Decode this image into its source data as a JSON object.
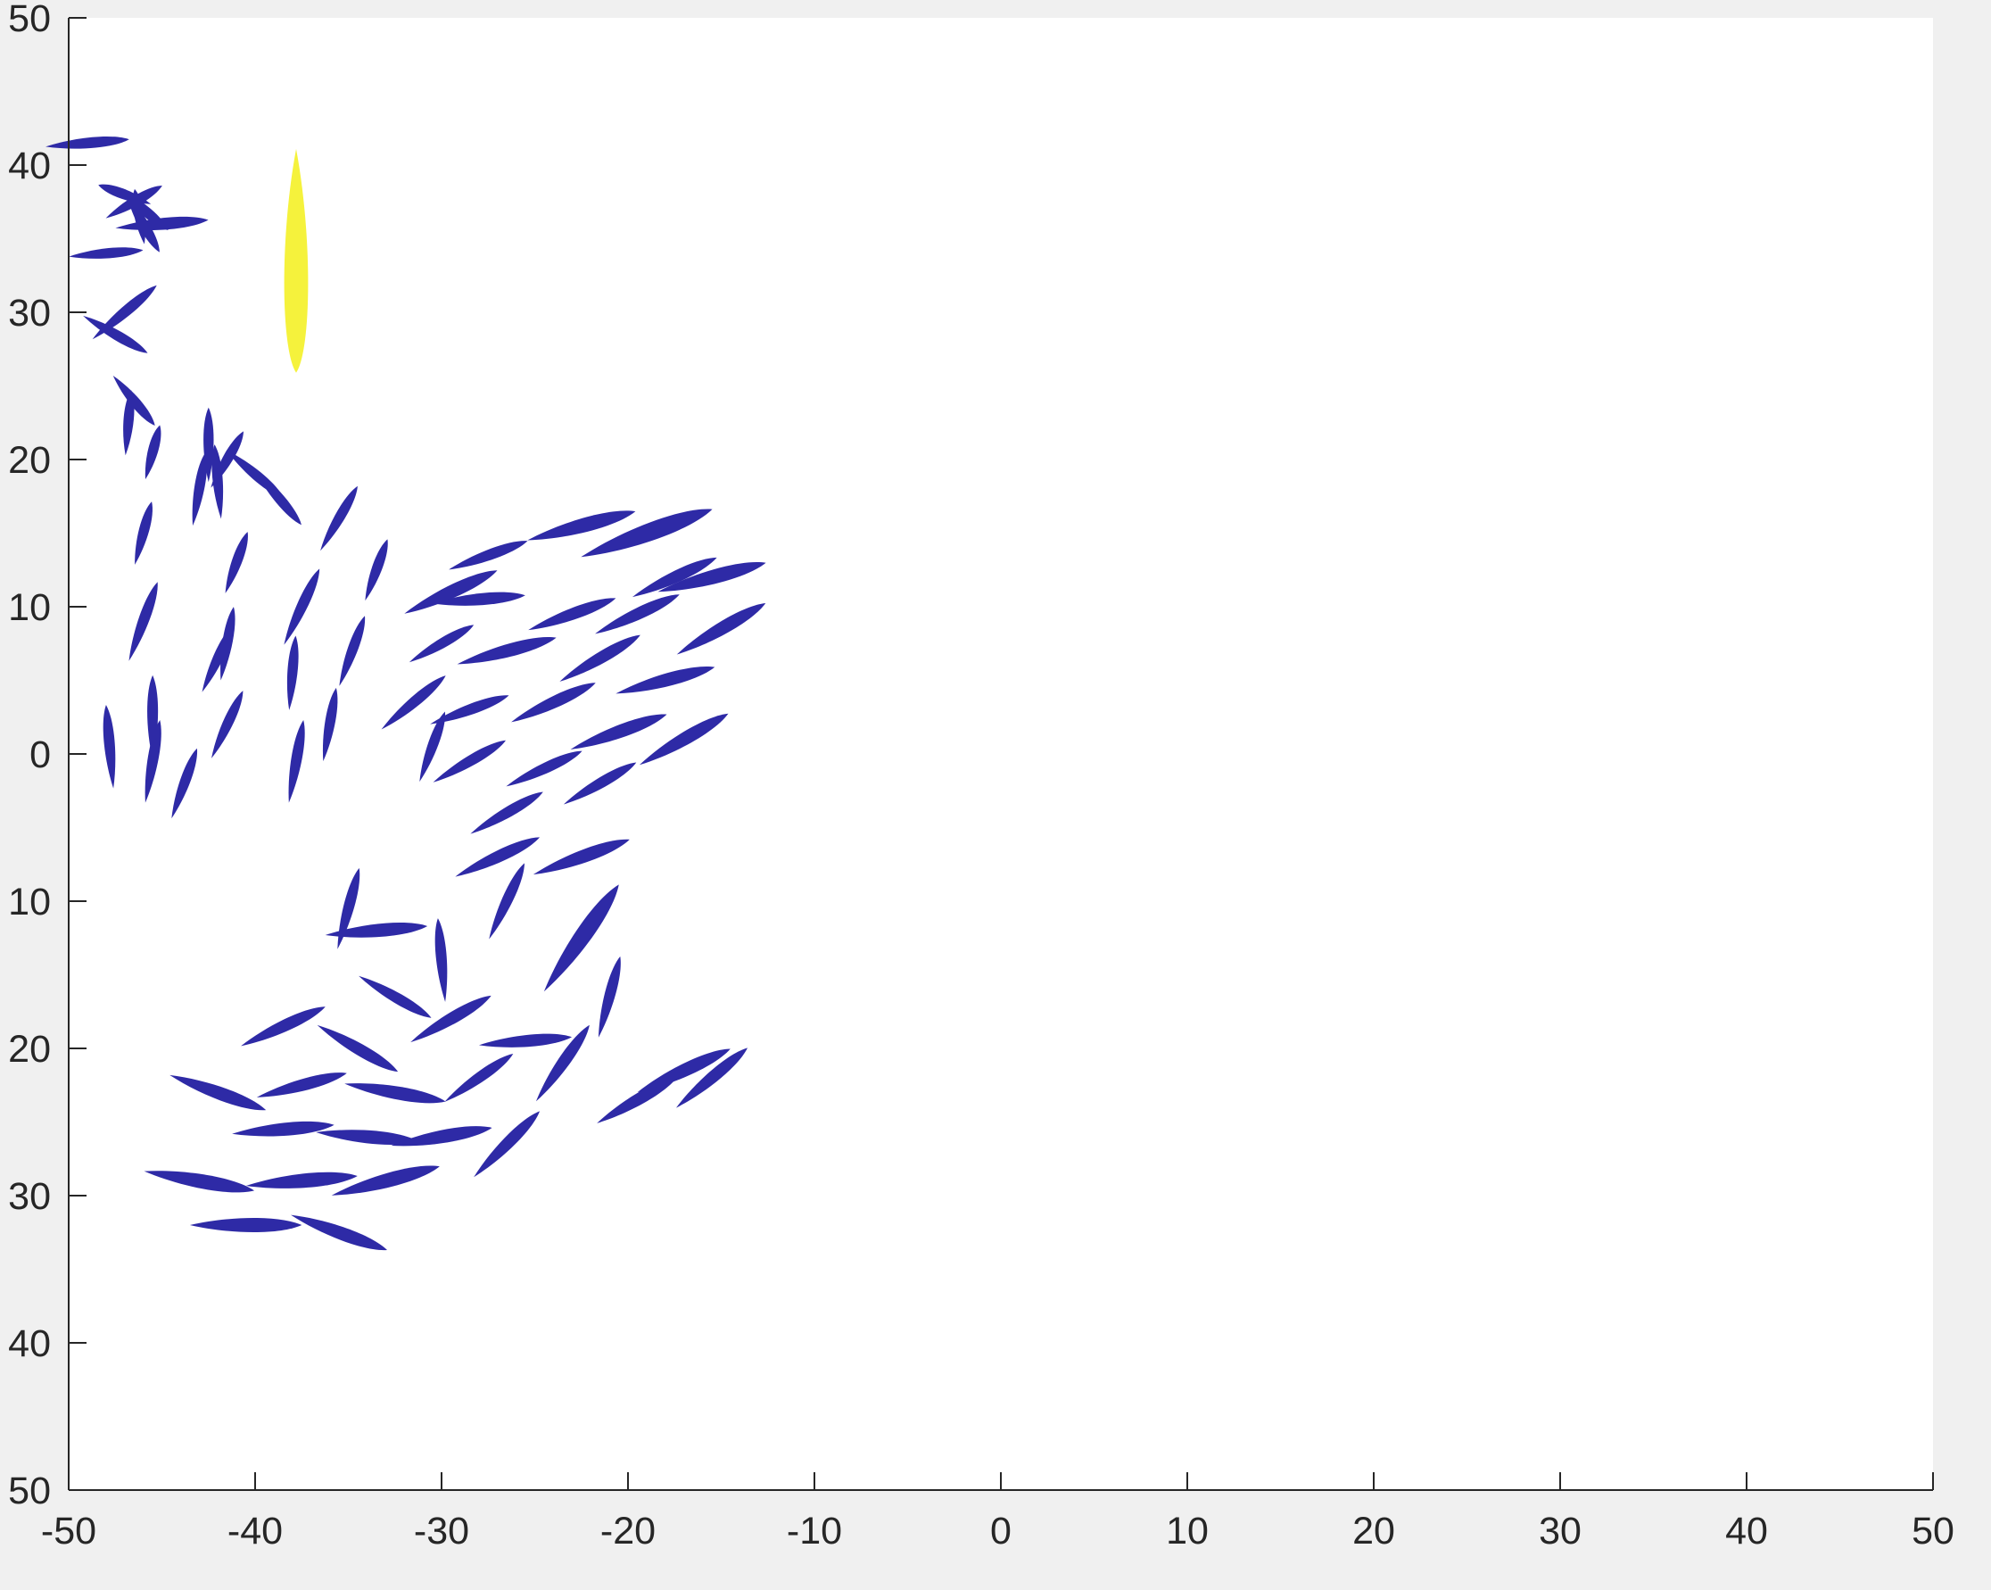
{
  "chart_data": {
    "type": "scatter",
    "title": "",
    "xlabel": "",
    "ylabel": "",
    "xlim": [
      -50,
      50
    ],
    "ylim": [
      -50,
      50
    ],
    "x_ticks": [
      -50,
      -40,
      -30,
      -20,
      -10,
      0,
      10,
      20,
      30,
      40,
      50
    ],
    "y_ticks": [
      -50,
      -40,
      -30,
      -20,
      -10,
      0,
      10,
      20,
      30,
      40,
      50
    ],
    "x_tick_labels": [
      "-50",
      "-40",
      "-30",
      "-20",
      "-10",
      "0",
      "10",
      "20",
      "30",
      "40",
      "50"
    ],
    "y_tick_labels": [
      "50",
      "40",
      "30",
      "20",
      "10",
      "0",
      "10",
      "20",
      "30",
      "40",
      "50"
    ],
    "grid": false,
    "legend": "none",
    "colors": {
      "figure_bg": "#f0f0f0",
      "axes_bg": "#ffffff",
      "axis": "#262626",
      "prey": "#2e2aa6",
      "predator": "#f5f23c"
    },
    "series": [
      {
        "marker": "fish",
        "points": [
          {
            "x": -49.0,
            "y": 41.5,
            "angle": 5,
            "len": 4.5
          },
          {
            "x": -46.5,
            "y": 37.5,
            "angle": 30,
            "len": 3.5
          },
          {
            "x": -46.0,
            "y": 37.0,
            "angle": -40,
            "len": 3.5
          },
          {
            "x": -46.2,
            "y": 36.5,
            "angle": 100,
            "len": 3.0
          },
          {
            "x": -45.0,
            "y": 36.0,
            "angle": 5,
            "len": 5.0
          },
          {
            "x": -47.0,
            "y": 38.0,
            "angle": 160,
            "len": 3.0
          },
          {
            "x": -46.0,
            "y": 36.0,
            "angle": -60,
            "len": 3.5
          },
          {
            "x": -48.0,
            "y": 34.0,
            "angle": 5,
            "len": 4.0
          },
          {
            "x": -47.0,
            "y": 30.0,
            "angle": 40,
            "len": 4.5
          },
          {
            "x": -47.5,
            "y": 28.5,
            "angle": -30,
            "len": 4.0
          },
          {
            "x": -46.5,
            "y": 24.0,
            "angle": -50,
            "len": 3.5
          },
          {
            "x": -46.8,
            "y": 22.5,
            "angle": 85,
            "len": 3.5
          },
          {
            "x": -45.5,
            "y": 20.5,
            "angle": 75,
            "len": 3.0
          },
          {
            "x": -42.5,
            "y": 21.0,
            "angle": 90,
            "len": 4.0
          },
          {
            "x": -42.0,
            "y": 18.5,
            "angle": 95,
            "len": 4.0
          },
          {
            "x": -41.5,
            "y": 20.0,
            "angle": 60,
            "len": 3.5
          },
          {
            "x": -40.0,
            "y": 19.0,
            "angle": -40,
            "len": 4.0
          },
          {
            "x": -38.8,
            "y": 17.5,
            "angle": -50,
            "len": 4.0
          },
          {
            "x": -43.0,
            "y": 18.0,
            "angle": 80,
            "len": 4.0
          },
          {
            "x": -46.0,
            "y": 15.0,
            "angle": 75,
            "len": 3.5
          },
          {
            "x": -41.0,
            "y": 13.0,
            "angle": 70,
            "len": 3.5
          },
          {
            "x": -35.5,
            "y": 16.0,
            "angle": 60,
            "len": 4.0
          },
          {
            "x": -33.5,
            "y": 12.5,
            "angle": 70,
            "len": 3.5
          },
          {
            "x": -46.0,
            "y": 9.0,
            "angle": 70,
            "len": 4.5
          },
          {
            "x": -42.0,
            "y": 6.5,
            "angle": 65,
            "len": 4.0
          },
          {
            "x": -41.5,
            "y": 7.5,
            "angle": 80,
            "len": 4.0
          },
          {
            "x": -37.5,
            "y": 10.0,
            "angle": 65,
            "len": 4.5
          },
          {
            "x": -38.0,
            "y": 5.5,
            "angle": 85,
            "len": 4.0
          },
          {
            "x": -34.8,
            "y": 7.0,
            "angle": 70,
            "len": 4.0
          },
          {
            "x": -45.5,
            "y": 2.5,
            "angle": 90,
            "len": 4.5
          },
          {
            "x": -41.5,
            "y": 2.0,
            "angle": 65,
            "len": 4.0
          },
          {
            "x": -36.0,
            "y": 2.0,
            "angle": 80,
            "len": 4.0
          },
          {
            "x": -37.8,
            "y": -0.5,
            "angle": 80,
            "len": 4.5
          },
          {
            "x": -47.8,
            "y": 0.5,
            "angle": 95,
            "len": 4.5
          },
          {
            "x": -45.5,
            "y": -0.5,
            "angle": 80,
            "len": 4.5
          },
          {
            "x": -43.8,
            "y": -2.0,
            "angle": 70,
            "len": 4.0
          },
          {
            "x": -22.5,
            "y": 15.5,
            "angle": 15,
            "len": 6.0
          },
          {
            "x": -19.0,
            "y": 15.0,
            "angle": 20,
            "len": 7.5
          },
          {
            "x": -27.5,
            "y": 13.5,
            "angle": 20,
            "len": 4.5
          },
          {
            "x": -29.5,
            "y": 11.0,
            "angle": 25,
            "len": 5.5
          },
          {
            "x": -28.0,
            "y": 10.5,
            "angle": 5,
            "len": 5.0
          },
          {
            "x": -17.5,
            "y": 12.0,
            "angle": 25,
            "len": 5.0
          },
          {
            "x": -15.5,
            "y": 12.0,
            "angle": 15,
            "len": 6.0
          },
          {
            "x": -23.0,
            "y": 9.5,
            "angle": 20,
            "len": 5.0
          },
          {
            "x": -30.0,
            "y": 7.5,
            "angle": 30,
            "len": 4.0
          },
          {
            "x": -19.5,
            "y": 9.5,
            "angle": 25,
            "len": 5.0
          },
          {
            "x": -15.0,
            "y": 8.5,
            "angle": 30,
            "len": 5.5
          },
          {
            "x": -26.5,
            "y": 7.0,
            "angle": 15,
            "len": 5.5
          },
          {
            "x": -21.5,
            "y": 6.5,
            "angle": 30,
            "len": 5.0
          },
          {
            "x": -18.0,
            "y": 5.0,
            "angle": 15,
            "len": 5.5
          },
          {
            "x": -31.5,
            "y": 3.5,
            "angle": 40,
            "len": 4.5
          },
          {
            "x": -28.5,
            "y": 3.0,
            "angle": 20,
            "len": 4.5
          },
          {
            "x": -24.0,
            "y": 3.5,
            "angle": 25,
            "len": 5.0
          },
          {
            "x": -20.5,
            "y": 1.5,
            "angle": 20,
            "len": 5.5
          },
          {
            "x": -30.5,
            "y": 0.5,
            "angle": 70,
            "len": 4.0
          },
          {
            "x": -28.5,
            "y": -0.5,
            "angle": 30,
            "len": 4.5
          },
          {
            "x": -24.5,
            "y": -1.0,
            "angle": 25,
            "len": 4.5
          },
          {
            "x": -17.0,
            "y": 1.0,
            "angle": 30,
            "len": 5.5
          },
          {
            "x": -21.5,
            "y": -2.0,
            "angle": 30,
            "len": 4.5
          },
          {
            "x": -26.5,
            "y": -4.0,
            "angle": 30,
            "len": 4.5
          },
          {
            "x": -27.0,
            "y": -7.0,
            "angle": 25,
            "len": 5.0
          },
          {
            "x": -22.5,
            "y": -7.0,
            "angle": 20,
            "len": 5.5
          },
          {
            "x": -26.5,
            "y": -10.0,
            "angle": 65,
            "len": 4.5
          },
          {
            "x": -35.0,
            "y": -10.5,
            "angle": 75,
            "len": 4.5
          },
          {
            "x": -33.5,
            "y": -12.0,
            "angle": 5,
            "len": 5.5
          },
          {
            "x": -30.0,
            "y": -14.0,
            "angle": 95,
            "len": 4.5
          },
          {
            "x": -22.5,
            "y": -12.5,
            "angle": 55,
            "len": 7.0
          },
          {
            "x": -21.0,
            "y": -16.5,
            "angle": 75,
            "len": 4.5
          },
          {
            "x": -32.5,
            "y": -16.5,
            "angle": -30,
            "len": 4.5
          },
          {
            "x": -29.5,
            "y": -18.0,
            "angle": 30,
            "len": 5.0
          },
          {
            "x": -38.5,
            "y": -18.5,
            "angle": 25,
            "len": 5.0
          },
          {
            "x": -34.5,
            "y": -20.0,
            "angle": -30,
            "len": 5.0
          },
          {
            "x": -25.5,
            "y": -19.5,
            "angle": 5,
            "len": 5.0
          },
          {
            "x": -23.5,
            "y": -21.0,
            "angle": 55,
            "len": 5.0
          },
          {
            "x": -37.5,
            "y": -22.5,
            "angle": 15,
            "len": 5.0
          },
          {
            "x": -32.5,
            "y": -23.0,
            "angle": -10,
            "len": 5.5
          },
          {
            "x": -42.0,
            "y": -23.0,
            "angle": -20,
            "len": 5.5
          },
          {
            "x": -28.0,
            "y": -22.0,
            "angle": 35,
            "len": 4.5
          },
          {
            "x": -19.5,
            "y": -23.5,
            "angle": 30,
            "len": 5.0
          },
          {
            "x": -17.0,
            "y": -21.5,
            "angle": 25,
            "len": 5.5
          },
          {
            "x": -15.5,
            "y": -22.0,
            "angle": 40,
            "len": 5.0
          },
          {
            "x": -38.5,
            "y": -25.5,
            "angle": 5,
            "len": 5.5
          },
          {
            "x": -34.0,
            "y": -26.0,
            "angle": -5,
            "len": 5.5
          },
          {
            "x": -30.0,
            "y": -26.0,
            "angle": 10,
            "len": 5.5
          },
          {
            "x": -26.5,
            "y": -26.5,
            "angle": 45,
            "len": 5.0
          },
          {
            "x": -43.0,
            "y": -29.0,
            "angle": -10,
            "len": 6.0
          },
          {
            "x": -37.5,
            "y": -29.0,
            "angle": 5,
            "len": 6.0
          },
          {
            "x": -33.0,
            "y": -29.0,
            "angle": 15,
            "len": 6.0
          },
          {
            "x": -40.5,
            "y": -32.0,
            "angle": 0,
            "len": 6.0
          },
          {
            "x": -35.5,
            "y": -32.5,
            "angle": -20,
            "len": 5.5
          }
        ]
      },
      {
        "marker": "predator",
        "points": [
          {
            "x": -37.8,
            "y": 33.5,
            "angle": 90,
            "len": 12.0
          }
        ]
      }
    ]
  }
}
